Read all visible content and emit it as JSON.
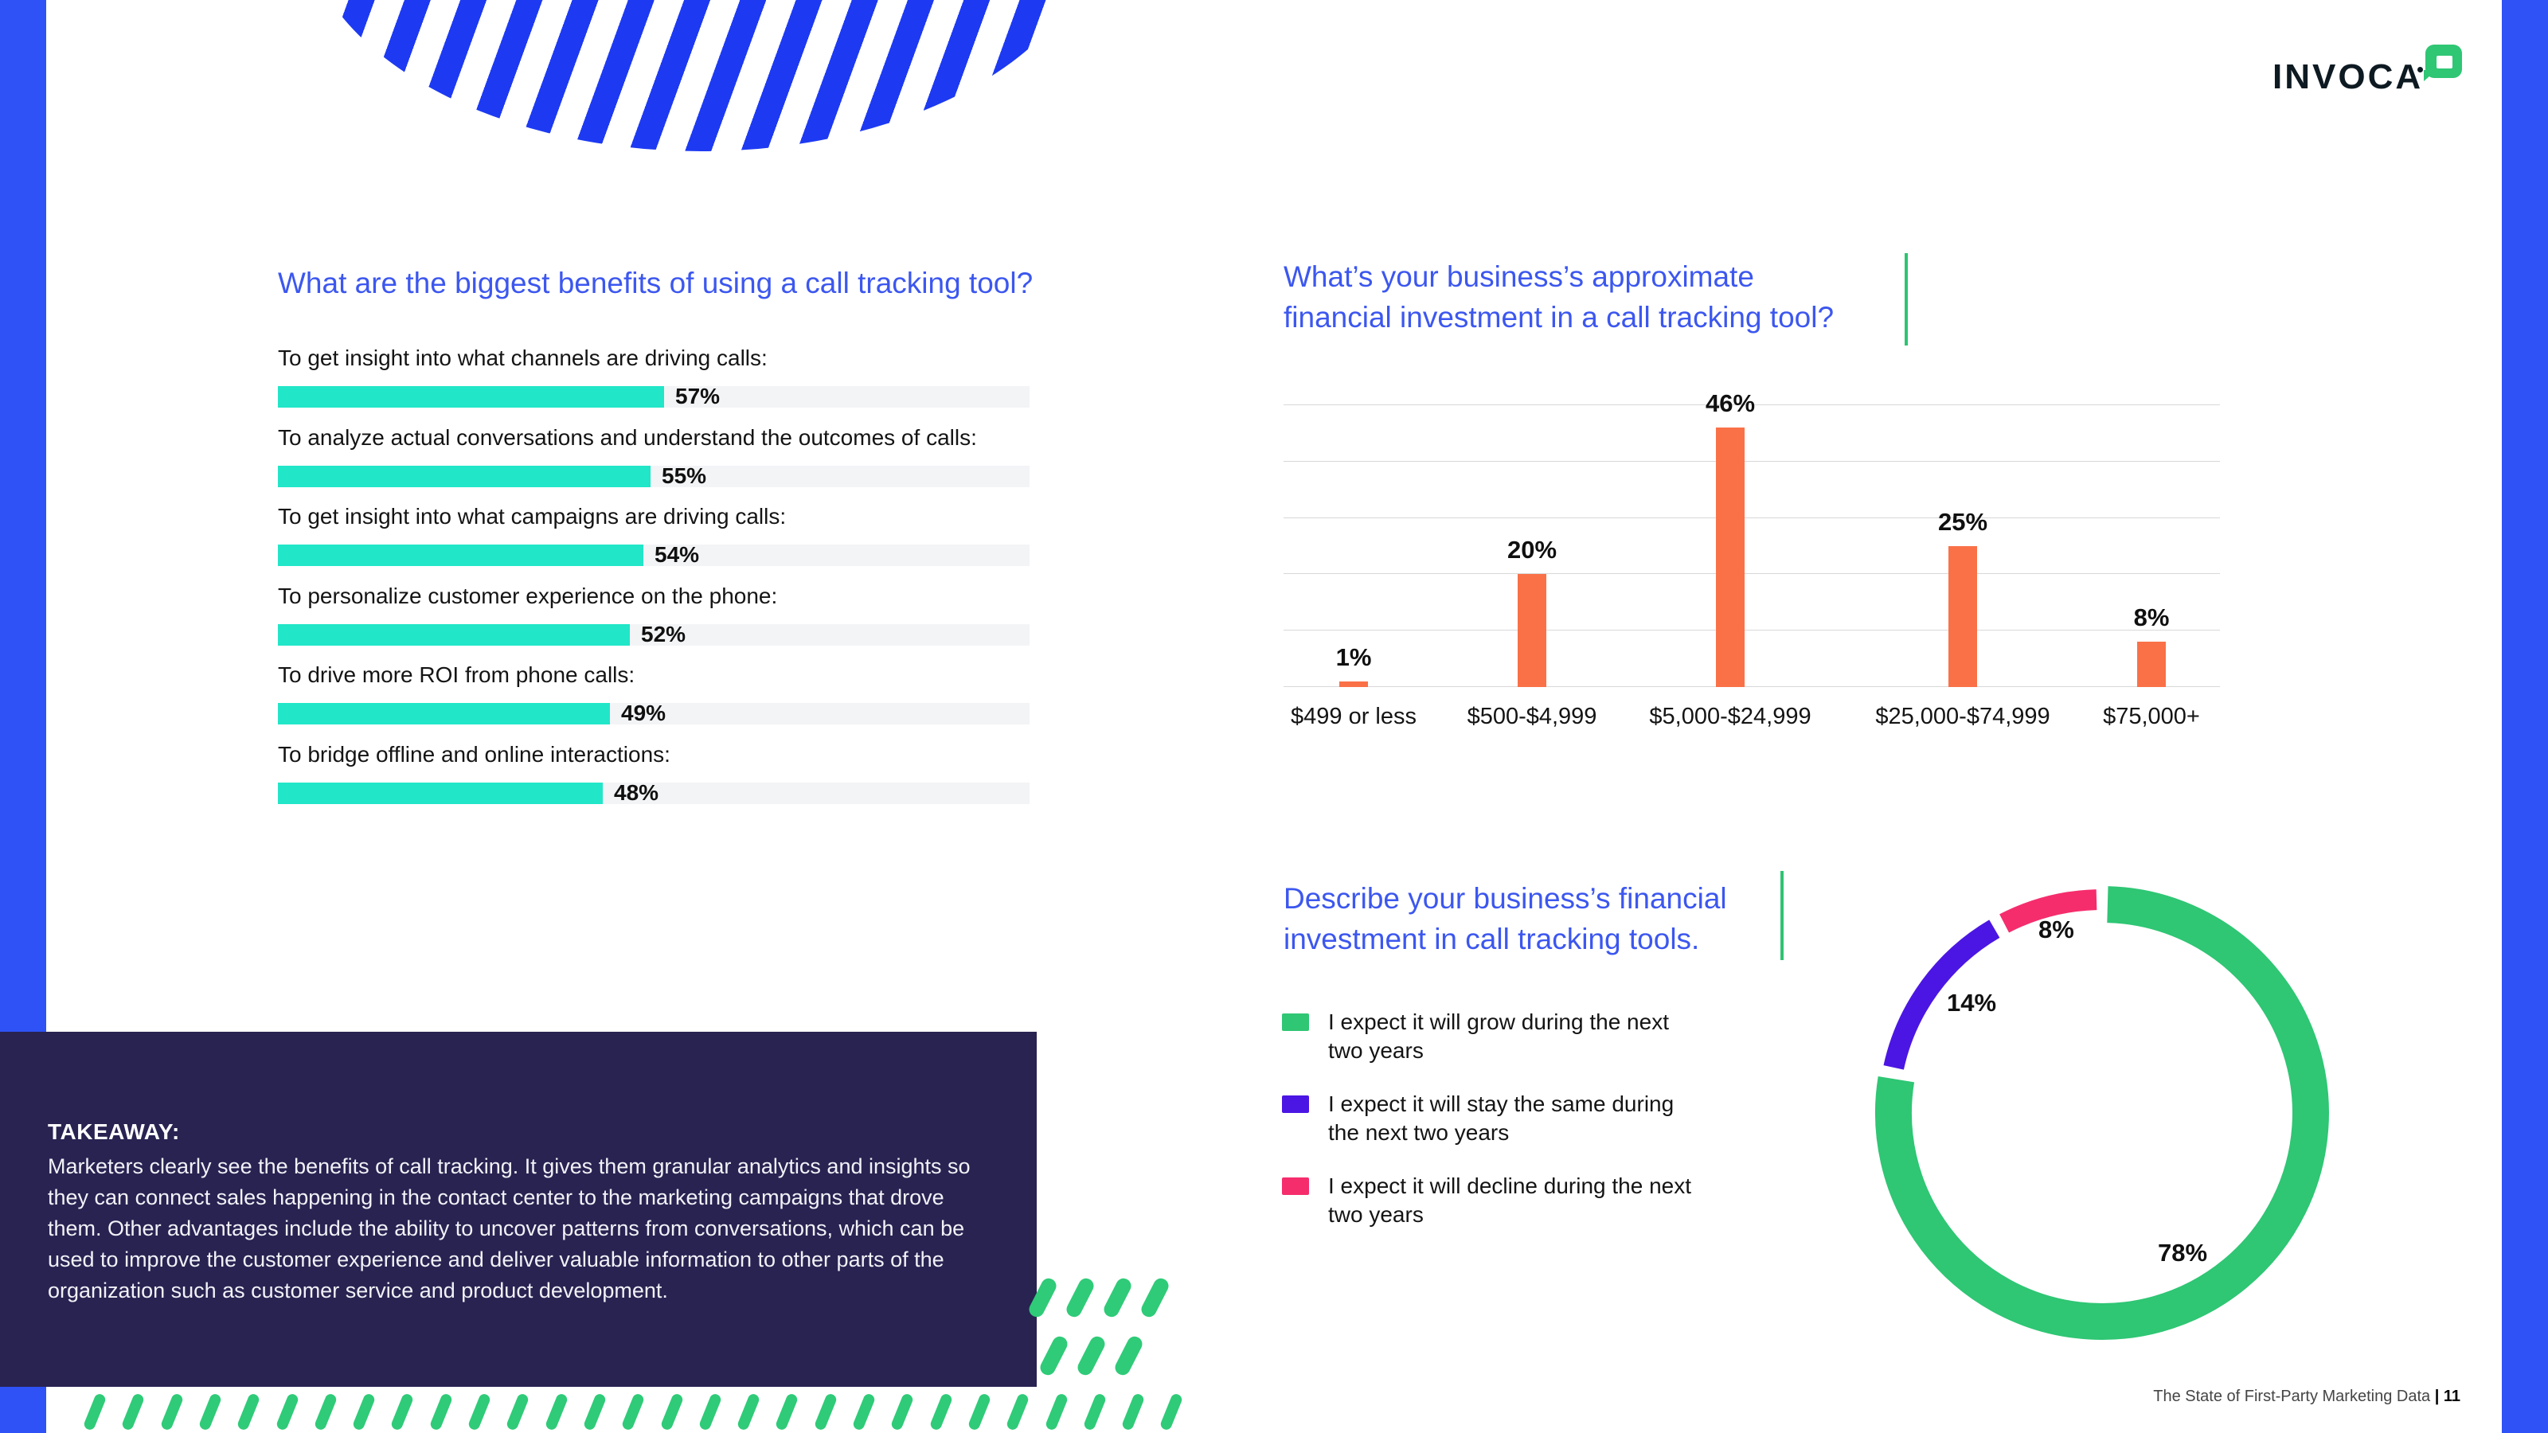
{
  "brand": {
    "logo_text": "INVOCA",
    "logo_color": "#0e1a22",
    "bubble_color": "#2fc674"
  },
  "accents": {
    "edge_bar_color": "#2e52f6",
    "stripe_color": "#1d3af2",
    "heading_color": "#3c57ef",
    "green": "#2fc674",
    "teal": "#21e6c8",
    "orange": "#fa7148",
    "navy": "#282351",
    "purple": "#4b16e3",
    "pink": "#f52d6d"
  },
  "benefits_chart": {
    "title": "What are the biggest benefits of using a call tracking tool?",
    "items": [
      {
        "label": "To get insight into what channels are driving calls:",
        "value": 57,
        "value_label": "57%"
      },
      {
        "label": "To analyze actual conversations and understand the outcomes of calls:",
        "value": 55,
        "value_label": "55%"
      },
      {
        "label": "To get insight into what campaigns are driving calls:",
        "value": 54,
        "value_label": "54%"
      },
      {
        "label": "To personalize customer experience on the phone:",
        "value": 52,
        "value_label": "52%"
      },
      {
        "label": "To drive more ROI from phone calls:",
        "value": 49,
        "value_label": "49%"
      },
      {
        "label": "To bridge offline and online interactions:",
        "value": 48,
        "value_label": "48%"
      }
    ]
  },
  "investment_chart": {
    "title_line1": "What’s your business’s approximate",
    "title_line2": "financial investment in a call tracking tool?",
    "categories": [
      "$499 or less",
      "$500-$4,999",
      "$5,000-$24,999",
      "$25,000-$74,999",
      "$75,000+"
    ],
    "values": [
      1,
      20,
      46,
      25,
      8
    ],
    "value_labels": [
      "1%",
      "20%",
      "46%",
      "25%",
      "8%"
    ]
  },
  "donut_chart": {
    "title_line1": "Describe your business’s financial",
    "title_line2": "investment in call tracking tools.",
    "segments": [
      {
        "label": "I expect it will grow during the next two years",
        "pct": 78,
        "value_label": "78%",
        "color": "#2fc674"
      },
      {
        "label": "I expect it will stay the same during the next two years",
        "pct": 14,
        "value_label": "14%",
        "color": "#4b16e3"
      },
      {
        "label": "I expect it will decline during the next two years",
        "pct": 8,
        "value_label": "8%",
        "color": "#f52d6d"
      }
    ]
  },
  "takeaway": {
    "heading": "TAKEAWAY:",
    "body": "Marketers clearly see the benefits of call tracking. It gives them granular analytics and insights so they can connect sales happening in the contact center to the marketing campaigns that drove them. Other advantages include the ability to uncover patterns from conversations, which can be used to improve the customer experience and deliver valuable information to other parts of the organization such as customer service and product development."
  },
  "footer": {
    "title": "The State of First-Party Marketing Data",
    "page_label": "| 11"
  },
  "chart_data": [
    {
      "type": "bar",
      "orientation": "horizontal",
      "title": "What are the biggest benefits of using a call tracking tool?",
      "categories": [
        "To get insight into what channels are driving calls:",
        "To analyze actual conversations and understand the outcomes of calls:",
        "To get insight into what campaigns are driving calls:",
        "To personalize customer experience on the phone:",
        "To drive more ROI from phone calls:",
        "To bridge offline and online interactions:"
      ],
      "values": [
        57,
        55,
        54,
        52,
        49,
        48
      ],
      "unit": "%",
      "bar_color": "#21e6c8",
      "data_labels": true
    },
    {
      "type": "bar",
      "orientation": "vertical",
      "title": "What’s your business’s approximate financial investment in a call tracking tool?",
      "categories": [
        "$499 or less",
        "$500-$4,999",
        "$5,000-$24,999",
        "$25,000-$74,999",
        "$75,000+"
      ],
      "values": [
        1,
        20,
        46,
        25,
        8
      ],
      "unit": "%",
      "ylim": [
        0,
        50
      ],
      "gridline_step": 10,
      "bar_color": "#fa7148",
      "data_labels": true
    },
    {
      "type": "pie",
      "subtype": "donut",
      "title": "Describe your business’s financial investment in call tracking tools.",
      "labels": [
        "I expect it will grow during the next two years",
        "I expect it will stay the same during the next two years",
        "I expect it will decline during the next two years"
      ],
      "values": [
        78,
        14,
        8
      ],
      "colors": [
        "#2fc674",
        "#4b16e3",
        "#f52d6d"
      ],
      "legend_position": "left",
      "data_labels": true
    }
  ]
}
